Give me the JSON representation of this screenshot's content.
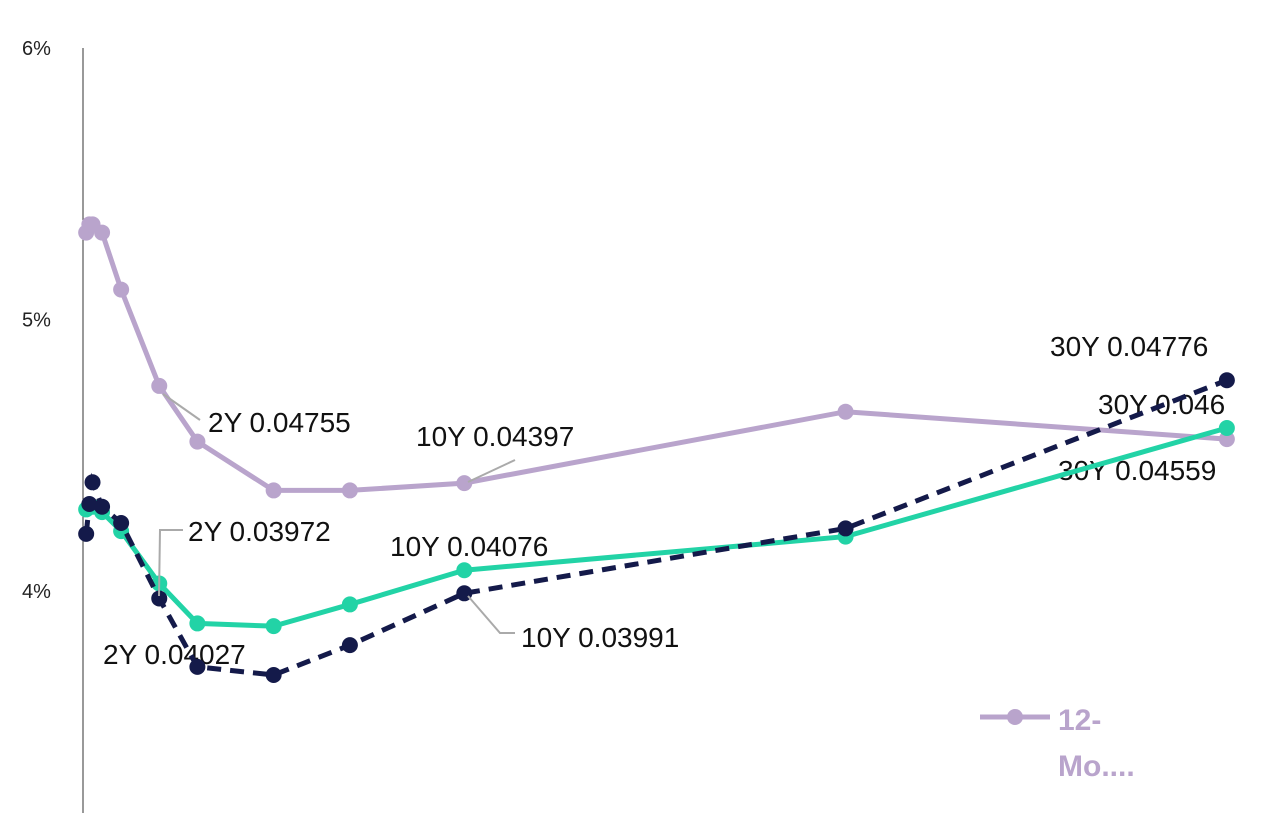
{
  "chart_data": {
    "type": "line",
    "x": [
      0.0833,
      0.1667,
      0.25,
      0.5,
      1,
      2,
      3,
      5,
      7,
      10,
      20,
      30
    ],
    "xlim": [
      0,
      31
    ],
    "ylim": [
      0.032,
      0.06
    ],
    "yticks": [
      {
        "value": 0.04,
        "label": "4%"
      },
      {
        "value": 0.05,
        "label": "5%"
      },
      {
        "value": 0.06,
        "label": "6%"
      }
    ],
    "grid": false,
    "series": [
      {
        "name": "12-Mo....",
        "color": "#b9a4cc",
        "dash": false,
        "values": [
          0.0532,
          0.0535,
          0.0535,
          0.0532,
          0.0511,
          0.04755,
          0.0455,
          0.0437,
          0.0437,
          0.04397,
          0.0466,
          0.04559
        ],
        "value_labels": [
          null,
          null,
          null,
          null,
          null,
          "2Y 0.04755",
          null,
          null,
          null,
          "10Y 0.04397",
          null,
          "30Y 0.04559"
        ]
      },
      {
        "color": "#22d3a6",
        "dash": false,
        "values": [
          0.043,
          0.0431,
          0.0431,
          0.0429,
          0.0422,
          0.04027,
          0.0388,
          0.0387,
          0.0395,
          0.04076,
          0.042,
          0.046
        ],
        "value_labels": [
          null,
          null,
          null,
          null,
          null,
          "2Y 0.04027",
          null,
          null,
          null,
          "10Y 0.04076",
          null,
          "30Y 0.046"
        ]
      },
      {
        "color": "#141a4a",
        "dash": true,
        "values": [
          0.0421,
          0.0432,
          0.044,
          0.0431,
          0.0425,
          0.03972,
          0.0372,
          0.0369,
          0.038,
          0.03991,
          0.0423,
          0.04776
        ],
        "value_labels": [
          null,
          null,
          null,
          null,
          null,
          "2Y 0.03972",
          null,
          null,
          null,
          "10Y 0.03991",
          null,
          "30Y 0.04776"
        ]
      }
    ]
  }
}
